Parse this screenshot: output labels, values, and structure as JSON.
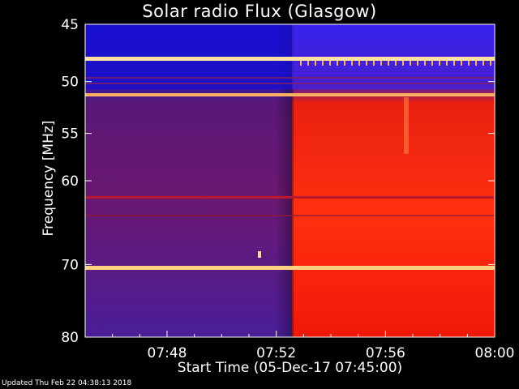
{
  "title": "Solar radio Flux (Glasgow)",
  "footer": "Updated Thu Feb 22 04:38:13 2018",
  "chart_data": {
    "type": "heatmap",
    "title": "Solar radio Flux (Glasgow)",
    "xlabel": "Start Time (05-Dec-17 07:45:00)",
    "ylabel": "Frequency [MHz]",
    "x_range_minutes": [
      0,
      15
    ],
    "x_ticks": [
      {
        "minute": 3,
        "label": "07:48"
      },
      {
        "minute": 7,
        "label": "07:52"
      },
      {
        "minute": 11,
        "label": "07:56"
      },
      {
        "minute": 15,
        "label": "08:00"
      }
    ],
    "y_range": [
      45,
      80
    ],
    "y_ticks": [
      {
        "mhz": 45,
        "label": "45"
      },
      {
        "mhz": 50,
        "label": "50"
      },
      {
        "mhz": 55,
        "label": "55"
      },
      {
        "mhz": 60,
        "label": "60"
      },
      {
        "mhz": 70,
        "label": "70"
      },
      {
        "mhz": 80,
        "label": "80"
      }
    ],
    "colors": {
      "background": "#000000",
      "low_flux": "#3a1fa8",
      "mid_flux": "#8c1a5c",
      "high_flux": "#ff2a10",
      "band_bright": "#ffd080"
    }
  }
}
